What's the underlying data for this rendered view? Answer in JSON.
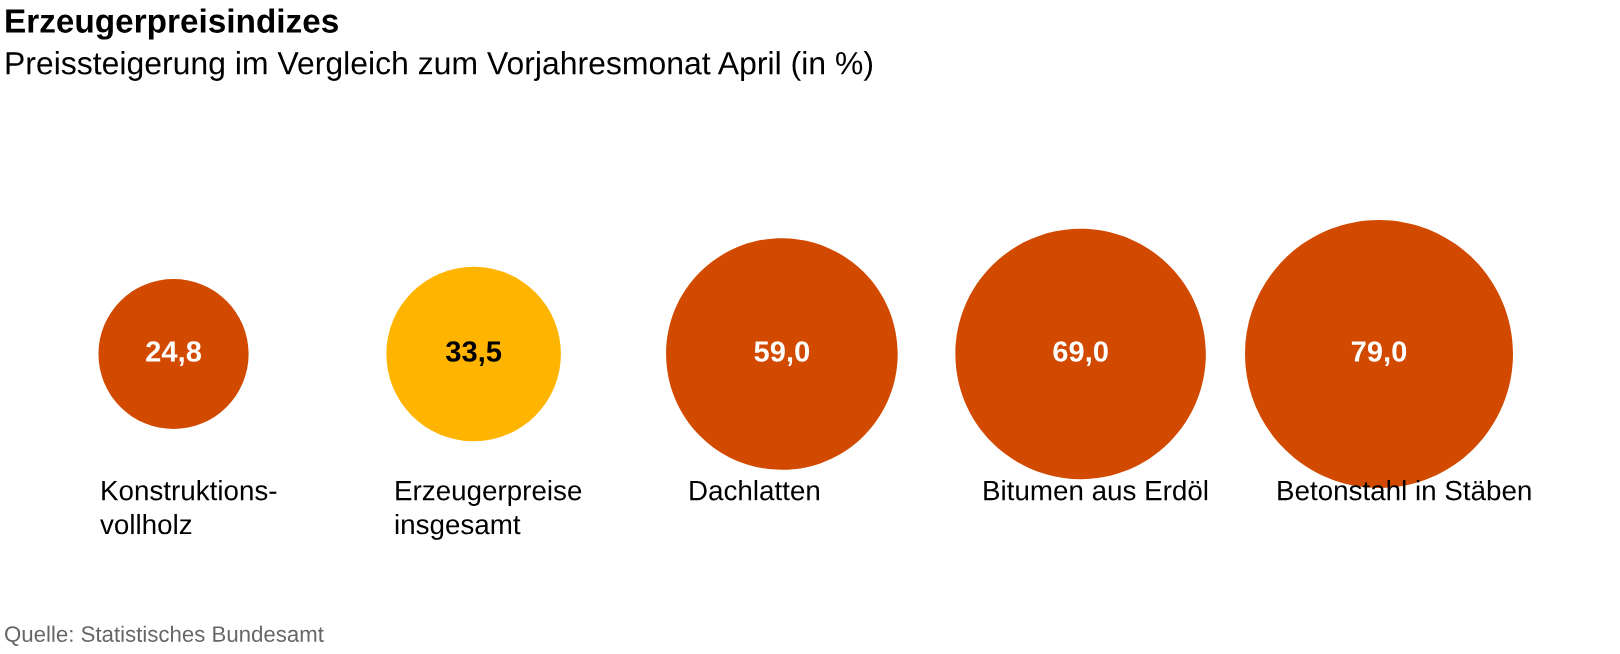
{
  "chart_data": {
    "type": "other",
    "title": "Erzeugerpreisindizes",
    "subtitle": "Preissteigerung im Vergleich zum Vorjahresmonat April (in %)",
    "categories": [
      "Konstruktions-\nvollholz",
      "Erzeugerpreise\ninsgesamt",
      "Dachlatten",
      "Bitumen aus Erdöl",
      "Betonstahl in Stäben"
    ],
    "values": [
      24.8,
      33.5,
      59.0,
      69.0,
      79.0
    ],
    "value_labels": [
      "24,8",
      "33,5",
      "59,0",
      "69,0",
      "79,0"
    ],
    "colors": [
      "#d24a00",
      "#ffb400",
      "#d24a00",
      "#d24a00",
      "#d24a00"
    ],
    "annotations": [
      "Quelle: Statistisches Bundesamt"
    ]
  }
}
